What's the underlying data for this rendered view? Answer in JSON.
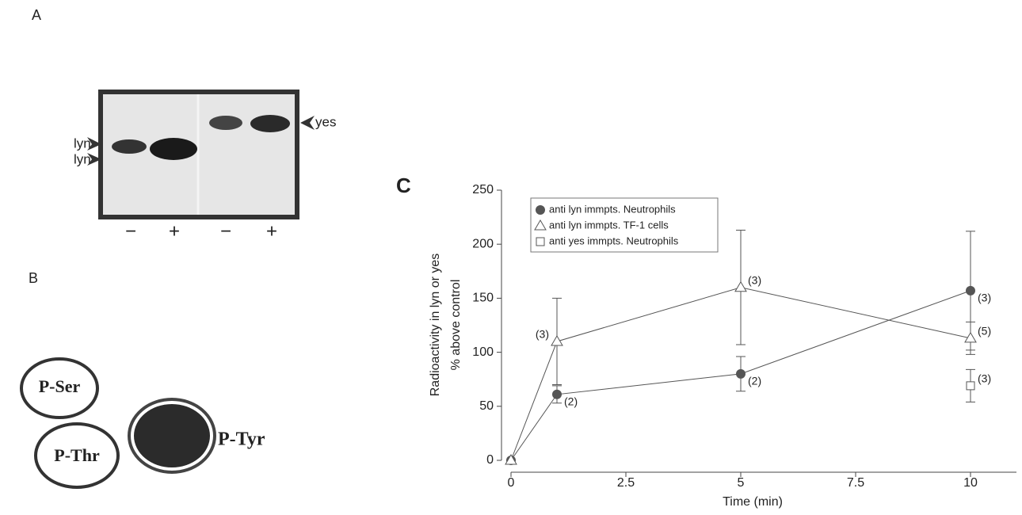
{
  "panel_a": {
    "label": "A",
    "band_labels": [
      "lyn",
      "lyn",
      "yes"
    ],
    "lanes": [
      "−",
      "+",
      "−",
      "+"
    ]
  },
  "panel_b": {
    "label": "B",
    "spots": [
      "P-Ser",
      "P-Thr",
      "P-Tyr"
    ]
  },
  "chart_data": {
    "type": "line",
    "panel_label": "C",
    "x_label": "Time (min)",
    "y_label": [
      "Radioactivity in lyn or yes",
      "% above control"
    ],
    "xlim": [
      0,
      11
    ],
    "xticks": [
      0,
      2.5,
      5,
      7.5,
      10
    ],
    "ylim": [
      0,
      250
    ],
    "yticks": [
      0,
      50,
      100,
      150,
      200,
      250
    ],
    "series": [
      {
        "name": "anti lyn immpts. Neutrophils",
        "color": "#555555",
        "marker": "circle",
        "x": [
          0,
          1,
          5,
          10
        ],
        "values": [
          0,
          61,
          80,
          157
        ],
        "errors": [
          null,
          8,
          16,
          55
        ],
        "n_labels": [
          null,
          "(2)",
          "(2)",
          "(3)"
        ]
      },
      {
        "name": "anti lyn immpts. TF-1 cells",
        "color": "#555555",
        "marker": "triangle",
        "x": [
          0,
          1,
          5,
          10
        ],
        "values": [
          0,
          110,
          160,
          113
        ],
        "errors": [
          null,
          40,
          53,
          15
        ],
        "n_labels": [
          null,
          "(3)",
          "(3)",
          "(5)"
        ]
      },
      {
        "name": "anti yes immpts. Neutrophils",
        "color": "#555555",
        "marker": "square",
        "x": [
          10
        ],
        "values": [
          69
        ],
        "errors": [
          15
        ],
        "n_labels": [
          "(3)"
        ]
      }
    ]
  }
}
